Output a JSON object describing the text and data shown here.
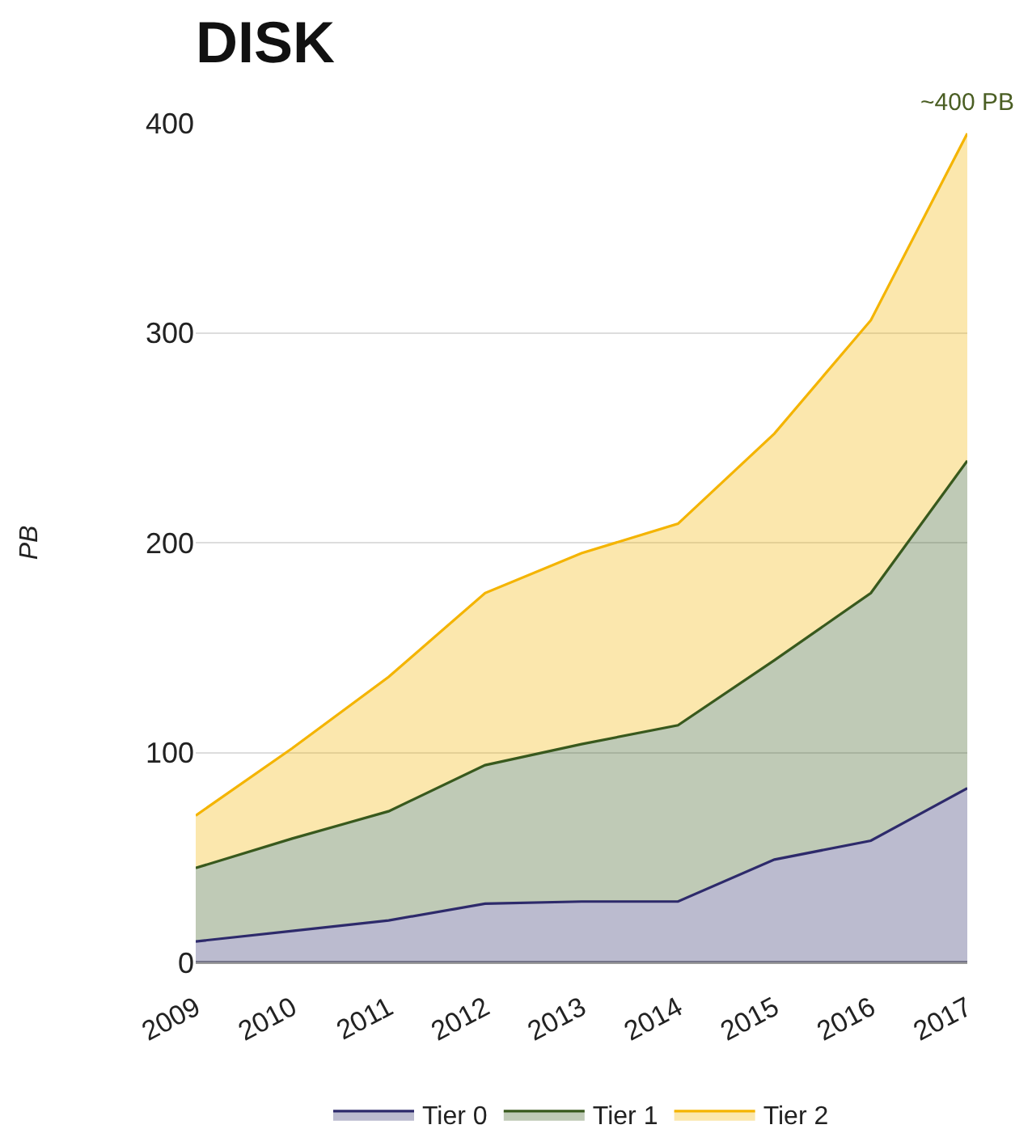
{
  "chart_data": {
    "type": "area",
    "title": "DISK",
    "ylabel": "PB",
    "stacked": true,
    "grid": "y",
    "legend": "bottom",
    "categories": [
      "2009",
      "2010",
      "2011",
      "2012",
      "2013",
      "2014",
      "2015",
      "2016",
      "2017"
    ],
    "ylim": [
      0,
      400
    ],
    "yticks": [
      0,
      100,
      200,
      300,
      400
    ],
    "annotations": [
      {
        "text": "~400 PB",
        "x": "2017",
        "y": 395
      }
    ],
    "series": [
      {
        "name": "Tier 0",
        "color": "#2d2a6b",
        "values": [
          10,
          15,
          20,
          28,
          29,
          29,
          49,
          58,
          83
        ]
      },
      {
        "name": "Tier 1",
        "color": "#38591d",
        "values": [
          35,
          44,
          52,
          66,
          75,
          84,
          95,
          118,
          156
        ]
      },
      {
        "name": "Tier 2",
        "color": "#f4b400",
        "values": [
          25,
          43,
          64,
          82,
          91,
          96,
          108,
          130,
          156
        ]
      }
    ]
  }
}
